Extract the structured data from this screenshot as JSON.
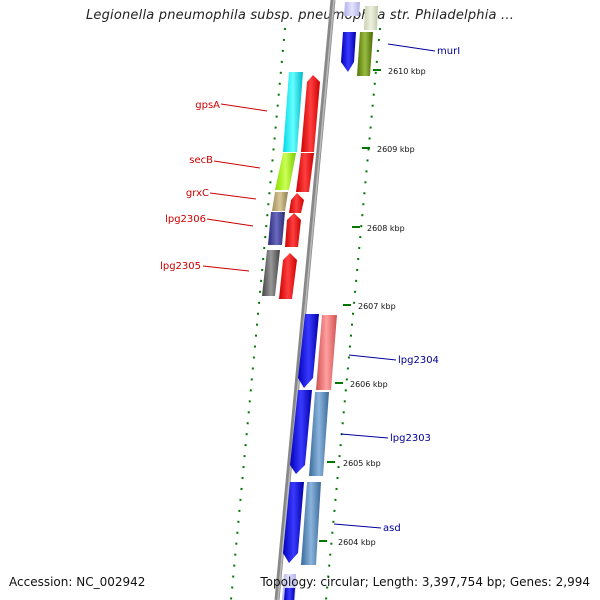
{
  "title": "Legionella pneumophila subsp. pneumophila str. Philadelphia ...",
  "footer": {
    "accession": "Accession: NC_002942",
    "summary": "Topology: circular; Length: 3,397,754 bp; Genes: 2,994"
  },
  "kbp_labels": [
    "2610 kbp",
    "2609 kbp",
    "2608 kbp",
    "2607 kbp",
    "2606 kbp",
    "2605 kbp",
    "2604 kbp"
  ],
  "genes_left": [
    {
      "name": "gpsA",
      "color": "#cc0000"
    },
    {
      "name": "secB",
      "color": "#cc0000"
    },
    {
      "name": "grxC",
      "color": "#cc0000"
    },
    {
      "name": "lpg2306",
      "color": "#cc0000"
    },
    {
      "name": "lpg2305",
      "color": "#cc0000"
    }
  ],
  "genes_right": [
    {
      "name": "murI",
      "color": "#000099"
    },
    {
      "name": "lpg2304",
      "color": "#000099"
    },
    {
      "name": "lpg2303",
      "color": "#000099"
    },
    {
      "name": "asd",
      "color": "#000099"
    }
  ],
  "colors": {
    "forward_strand": "#ff0000",
    "reverse_strand": "#0000ff",
    "backbone": "#888888",
    "tick": "#007700"
  }
}
